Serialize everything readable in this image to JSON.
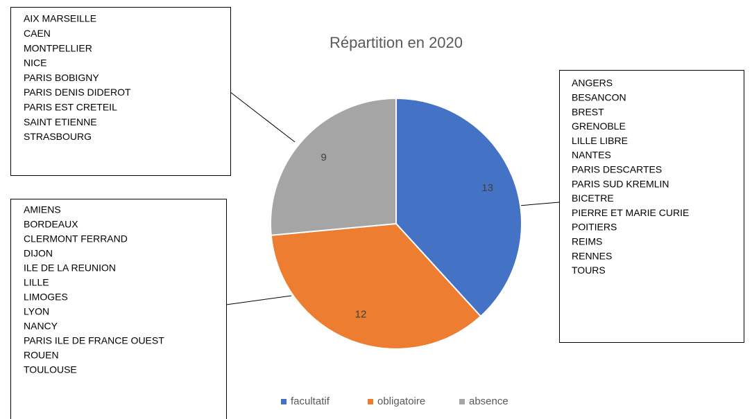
{
  "chart_data": {
    "type": "pie",
    "title": "Répartition en 2020",
    "categories": [
      "facultatif",
      "obligatoire",
      "absence"
    ],
    "values": [
      13,
      12,
      9
    ],
    "colors": [
      "#4472c4",
      "#ed7d31",
      "#a5a5a5"
    ],
    "annotations": [
      {
        "lines": [
          "AIX MARSEILLE",
          "CAEN",
          "MONTPELLIER",
          "NICE",
          "PARIS BOBIGNY",
          "PARIS DENIS DIDEROT",
          "PARIS EST CRETEIL",
          "SAINT ETIENNE",
          "STRASBOURG"
        ]
      },
      {
        "lines": [
          "AMIENS",
          "BORDEAUX",
          "CLERMONT FERRAND",
          "DIJON",
          "ILE DE LA REUNION",
          "LILLE",
          "LIMOGES",
          "LYON",
          "NANCY",
          "PARIS ILE DE FRANCE OUEST",
          "ROUEN",
          "TOULOUSE"
        ]
      },
      {
        "lines": [
          "ANGERS",
          "BESANCON",
          "BREST",
          "GRENOBLE",
          "LILLE LIBRE",
          "NANTES",
          "PARIS DESCARTES",
          "PARIS SUD KREMLIN",
          "BICETRE",
          "PIERRE ET MARIE CURIE",
          "POITIERS",
          "REIMS",
          "RENNES",
          "TOURS"
        ]
      }
    ]
  }
}
